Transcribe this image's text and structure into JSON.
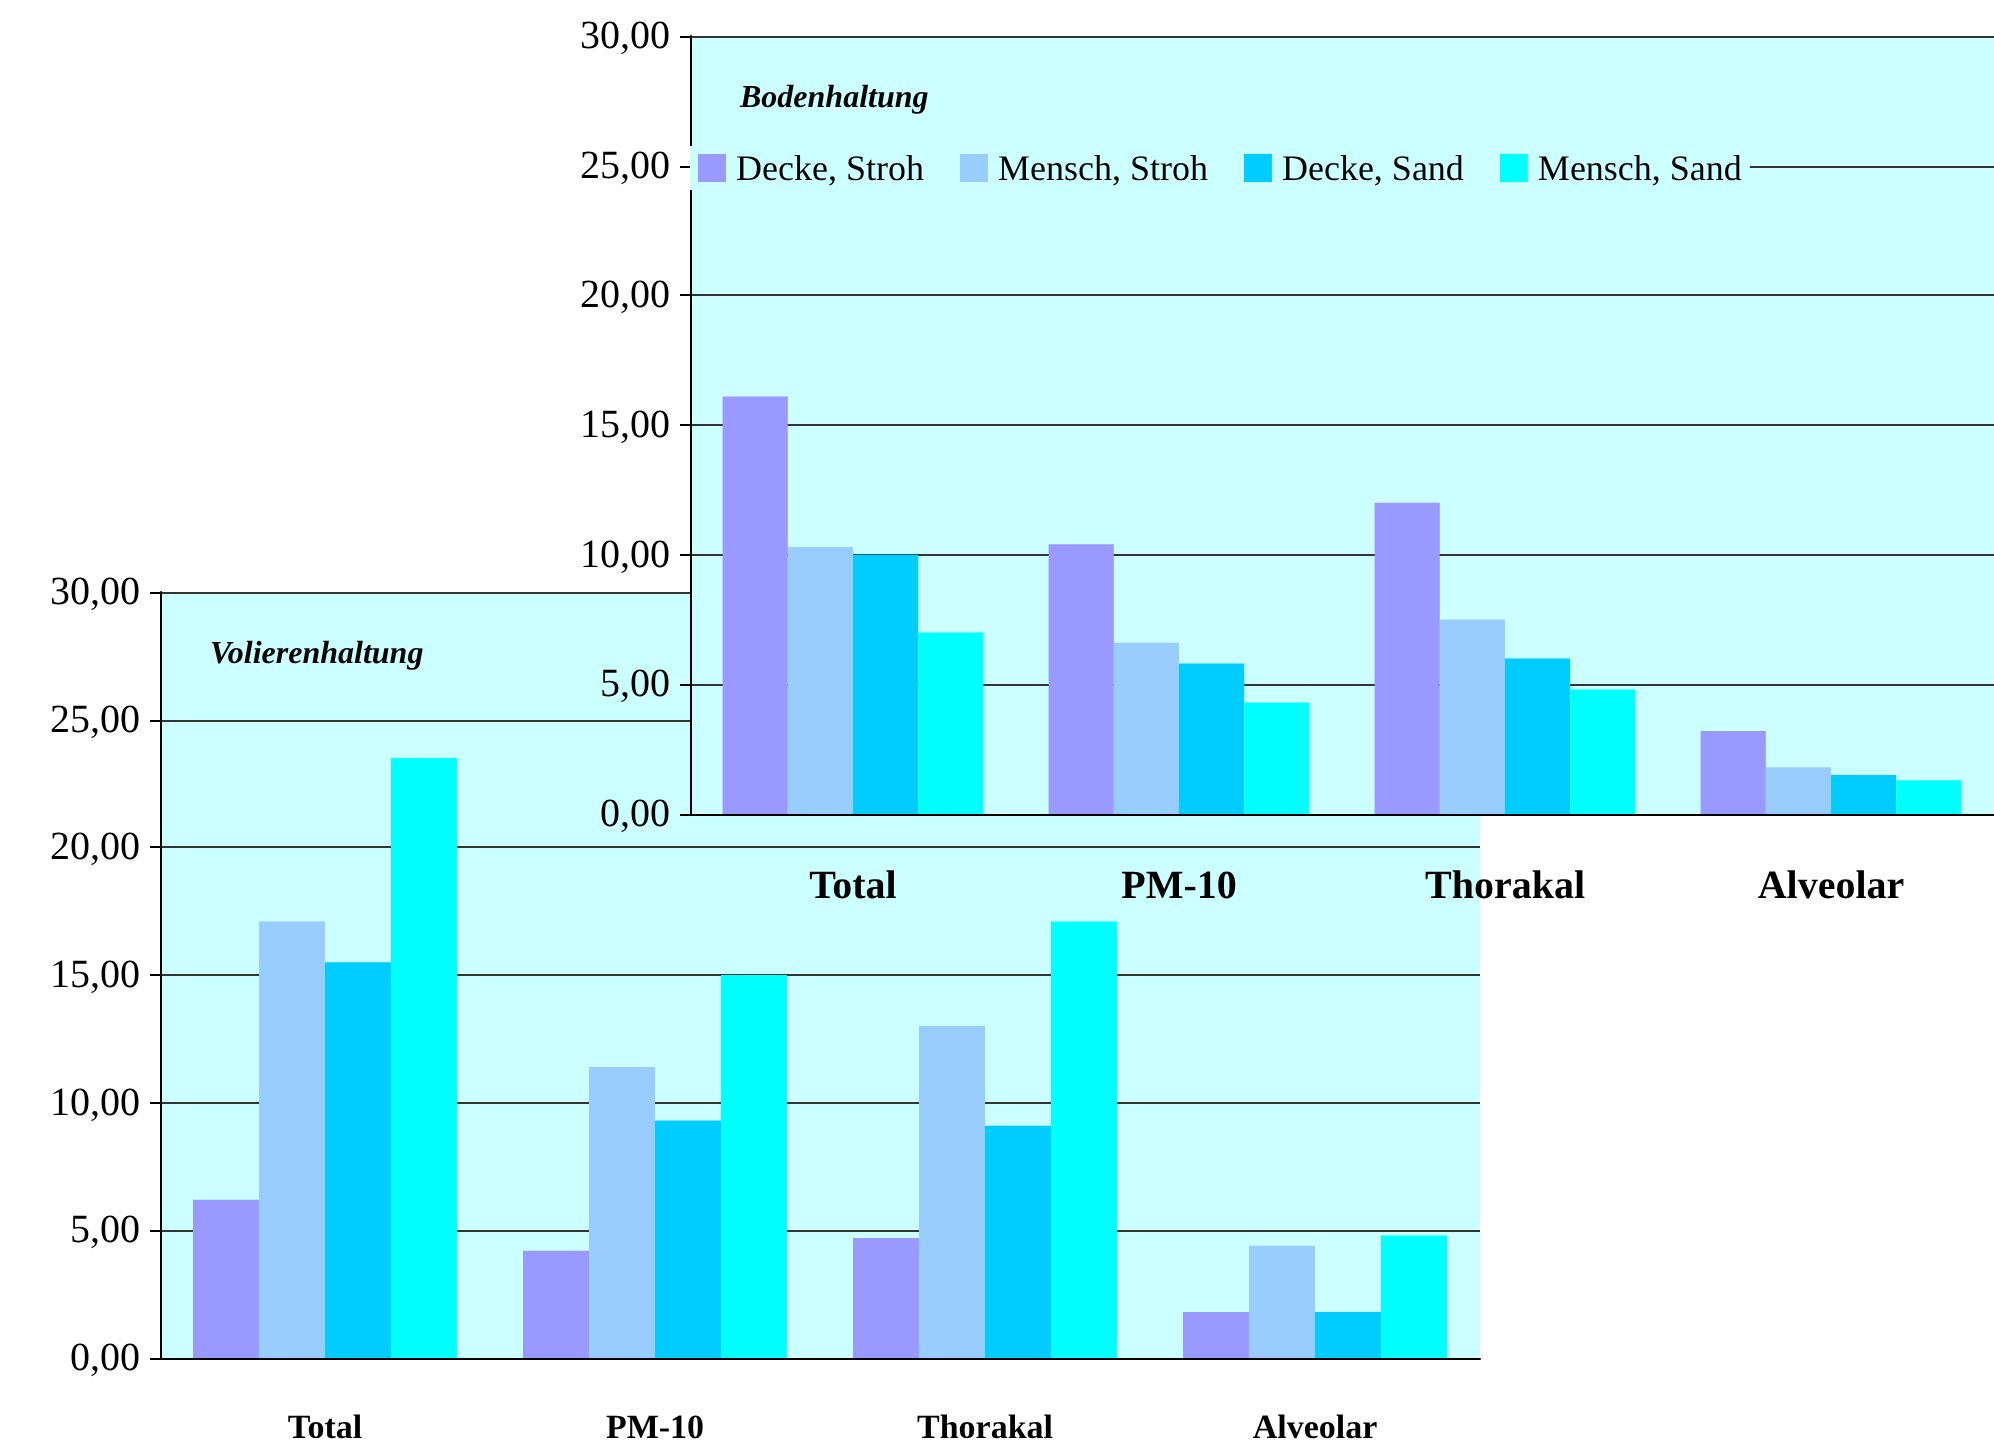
{
  "chart_data": [
    {
      "type": "bar",
      "title": "Bodenhaltung",
      "categories": [
        "Total",
        "PM-10",
        "Thorakal",
        "Alveolar"
      ],
      "series": [
        {
          "name": "Decke, Stroh",
          "color": "#9999ff",
          "values": [
            16.1,
            10.4,
            12.0,
            3.2
          ]
        },
        {
          "name": "Mensch, Stroh",
          "color": "#99ccff",
          "values": [
            10.3,
            6.6,
            7.5,
            1.8
          ]
        },
        {
          "name": "Decke, Sand",
          "color": "#00ccff",
          "values": [
            10.0,
            5.8,
            6.0,
            1.5
          ]
        },
        {
          "name": "Mensch, Sand",
          "color": "#00ffff",
          "values": [
            7.0,
            4.3,
            4.8,
            1.3
          ]
        }
      ],
      "ylim": [
        0,
        30
      ],
      "yticks": [
        {
          "value": 0,
          "label": "0,00"
        },
        {
          "value": 5,
          "label": "5,00"
        },
        {
          "value": 10,
          "label": "10,00"
        },
        {
          "value": 15,
          "label": "15,00"
        },
        {
          "value": 20,
          "label": "20,00"
        },
        {
          "value": 25,
          "label": "25,00"
        },
        {
          "value": 30,
          "label": "30,00"
        }
      ],
      "grid": "y",
      "legend": "top left"
    },
    {
      "type": "bar",
      "title": "Volierenhaltung",
      "categories": [
        "Total",
        "PM-10",
        "Thorakal",
        "Alveolar"
      ],
      "series": [
        {
          "color": "#9999ff",
          "values": [
            6.2,
            4.2,
            4.7,
            1.8
          ]
        },
        {
          "color": "#99ccff",
          "values": [
            17.1,
            11.4,
            13.0,
            4.4
          ]
        },
        {
          "color": "#00ccff",
          "values": [
            15.5,
            9.3,
            9.1,
            1.8
          ]
        },
        {
          "color": "#00ffff",
          "values": [
            23.5,
            15.0,
            17.1,
            4.8
          ]
        }
      ],
      "ylim": [
        0,
        30
      ],
      "yticks": [
        {
          "value": 0,
          "label": "0,00"
        },
        {
          "value": 5,
          "label": "5,00"
        },
        {
          "value": 10,
          "label": "10,00"
        },
        {
          "value": 15,
          "label": "15,00"
        },
        {
          "value": 20,
          "label": "20,00"
        },
        {
          "value": 25,
          "label": "25,00"
        },
        {
          "value": 30,
          "label": "30,00"
        }
      ],
      "grid": "y",
      "legend": false
    }
  ]
}
